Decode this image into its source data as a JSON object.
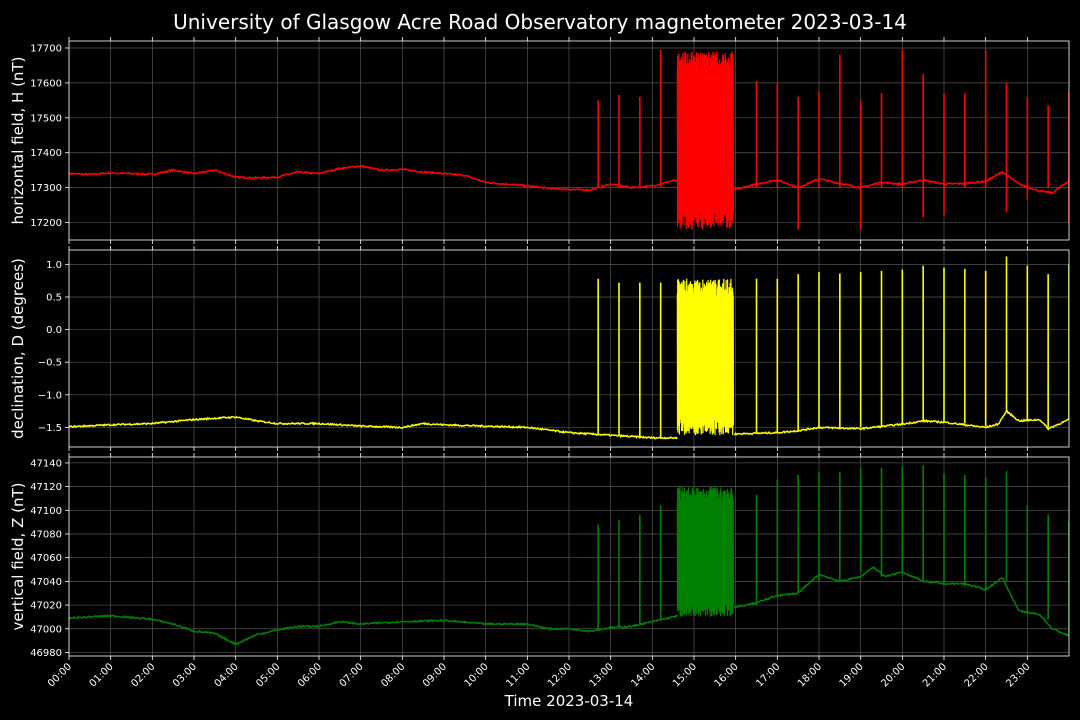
{
  "chart_data": {
    "type": "line",
    "title": "University of Glasgow Acre Road Observatory magnetometer 2023-03-14",
    "xlabel": "Time 2023-03-14",
    "x_ticks": [
      "00:00",
      "01:00",
      "02:00",
      "03:00",
      "04:00",
      "05:00",
      "06:00",
      "07:00",
      "08:00",
      "09:00",
      "10:00",
      "11:00",
      "12:00",
      "13:00",
      "14:00",
      "15:00",
      "16:00",
      "17:00",
      "18:00",
      "19:00",
      "20:00",
      "21:00",
      "22:00",
      "23:00"
    ],
    "xlim_hours": [
      0,
      24
    ],
    "grid": true,
    "panels": [
      {
        "name": "H",
        "ylabel": "horizontal field, H (nT)",
        "color": "#ff0000",
        "ylim": [
          17150,
          17720
        ],
        "y_ticks": [
          17200,
          17300,
          17400,
          17500,
          17600,
          17700
        ],
        "y_tick_labels": [
          "17200",
          "17300",
          "17400",
          "17500",
          "17600",
          "17700"
        ],
        "baseline": [
          [
            0,
            17340
          ],
          [
            0.5,
            17338
          ],
          [
            1,
            17342
          ],
          [
            1.5,
            17340
          ],
          [
            2,
            17338
          ],
          [
            2.5,
            17350
          ],
          [
            3,
            17340
          ],
          [
            3.5,
            17350
          ],
          [
            4,
            17330
          ],
          [
            4.5,
            17328
          ],
          [
            5,
            17330
          ],
          [
            5.5,
            17345
          ],
          [
            6,
            17340
          ],
          [
            6.5,
            17355
          ],
          [
            7,
            17362
          ],
          [
            7.5,
            17350
          ],
          [
            8,
            17352
          ],
          [
            8.5,
            17345
          ],
          [
            9,
            17340
          ],
          [
            9.5,
            17335
          ],
          [
            10,
            17315
          ],
          [
            10.5,
            17310
          ],
          [
            11,
            17305
          ],
          [
            11.5,
            17298
          ],
          [
            12,
            17295
          ],
          [
            12.5,
            17293
          ],
          [
            13,
            17310
          ],
          [
            13.5,
            17300
          ],
          [
            14,
            17305
          ],
          [
            14.5,
            17320
          ],
          [
            15,
            17310
          ],
          [
            15.5,
            17300
          ],
          [
            16,
            17295
          ],
          [
            16.5,
            17310
          ],
          [
            17,
            17322
          ],
          [
            17.5,
            17300
          ],
          [
            18,
            17325
          ],
          [
            18.5,
            17312
          ],
          [
            19,
            17300
          ],
          [
            19.5,
            17315
          ],
          [
            20,
            17310
          ],
          [
            20.5,
            17322
          ],
          [
            21,
            17310
          ],
          [
            21.5,
            17312
          ],
          [
            22,
            17318
          ],
          [
            22.4,
            17345
          ],
          [
            22.8,
            17310
          ],
          [
            23.3,
            17290
          ],
          [
            23.6,
            17285
          ],
          [
            24,
            17320
          ]
        ],
        "spikes": [
          [
            12.7,
            17550,
            17300
          ],
          [
            13.2,
            17565,
            17300
          ],
          [
            13.7,
            17560,
            17300
          ],
          [
            14.2,
            17695,
            17300
          ],
          [
            16.5,
            17605,
            17300
          ],
          [
            17.0,
            17600,
            17300
          ],
          [
            17.5,
            17560,
            17180
          ],
          [
            18.0,
            17575,
            17300
          ],
          [
            18.5,
            17680,
            17300
          ],
          [
            19.0,
            17550,
            17180
          ],
          [
            19.5,
            17570,
            17300
          ],
          [
            20.0,
            17695,
            17300
          ],
          [
            20.5,
            17625,
            17215
          ],
          [
            21.0,
            17570,
            17220
          ],
          [
            21.5,
            17570,
            17300
          ],
          [
            22.0,
            17695,
            17300
          ],
          [
            22.5,
            17600,
            17230
          ],
          [
            23.0,
            17560,
            17265
          ],
          [
            23.5,
            17535,
            17300
          ],
          [
            24.0,
            17575,
            17200
          ]
        ],
        "burst": {
          "start": 14.6,
          "end": 15.95,
          "top": 17690,
          "bottom": 17180
        }
      },
      {
        "name": "D",
        "ylabel": "declination, D (degrees)",
        "color": "#ffff00",
        "ylim": [
          -1.8,
          1.22
        ],
        "y_ticks": [
          -1.5,
          -1.0,
          -0.5,
          0.0,
          0.5,
          1.0
        ],
        "y_tick_labels": [
          "−1.5",
          "−1.0",
          "−0.5",
          "0.0",
          "0.5",
          "1.0"
        ],
        "baseline": [
          [
            0,
            -1.49
          ],
          [
            1,
            -1.46
          ],
          [
            2,
            -1.44
          ],
          [
            3,
            -1.38
          ],
          [
            3.5,
            -1.36
          ],
          [
            4,
            -1.34
          ],
          [
            4.5,
            -1.4
          ],
          [
            5,
            -1.44
          ],
          [
            6,
            -1.44
          ],
          [
            7,
            -1.48
          ],
          [
            8,
            -1.5
          ],
          [
            8.5,
            -1.44
          ],
          [
            9,
            -1.46
          ],
          [
            10,
            -1.48
          ],
          [
            11,
            -1.5
          ],
          [
            12,
            -1.58
          ],
          [
            13,
            -1.62
          ],
          [
            14,
            -1.66
          ],
          [
            14.6,
            -1.66
          ],
          [
            15,
            -1.6
          ],
          [
            16,
            -1.6
          ],
          [
            17,
            -1.58
          ],
          [
            17.5,
            -1.55
          ],
          [
            18,
            -1.5
          ],
          [
            19,
            -1.52
          ],
          [
            20,
            -1.45
          ],
          [
            20.5,
            -1.4
          ],
          [
            21,
            -1.42
          ],
          [
            22,
            -1.5
          ],
          [
            22.3,
            -1.45
          ],
          [
            22.5,
            -1.25
          ],
          [
            22.8,
            -1.4
          ],
          [
            23.3,
            -1.38
          ],
          [
            23.5,
            -1.52
          ],
          [
            24,
            -1.38
          ]
        ],
        "spikes": [
          [
            12.7,
            0.78,
            -1.6
          ],
          [
            13.2,
            0.72,
            -1.62
          ],
          [
            13.7,
            0.72,
            -1.64
          ],
          [
            14.2,
            0.72,
            -1.66
          ],
          [
            16.5,
            0.78,
            -1.58
          ],
          [
            17.0,
            0.78,
            -1.57
          ],
          [
            17.5,
            0.85,
            -1.55
          ],
          [
            18.0,
            0.88,
            -1.52
          ],
          [
            18.5,
            0.86,
            -1.5
          ],
          [
            19.0,
            0.88,
            -1.5
          ],
          [
            19.5,
            0.9,
            -1.48
          ],
          [
            20.0,
            0.92,
            -1.45
          ],
          [
            20.5,
            0.98,
            -1.42
          ],
          [
            21.0,
            0.95,
            -1.42
          ],
          [
            21.5,
            0.93,
            -1.44
          ],
          [
            22.0,
            0.9,
            -1.48
          ],
          [
            22.5,
            1.12,
            -1.25
          ],
          [
            23.0,
            0.98,
            -1.4
          ],
          [
            23.5,
            0.85,
            -1.5
          ],
          [
            24.0,
            1.0,
            -1.38
          ]
        ],
        "burst": {
          "start": 14.6,
          "end": 15.95,
          "top": 0.78,
          "bottom": -1.62
        }
      },
      {
        "name": "Z",
        "ylabel": "vertical field, Z (nT)",
        "color": "#008000",
        "ylim": [
          46977,
          47145
        ],
        "y_ticks": [
          46980,
          47000,
          47020,
          47040,
          47060,
          47080,
          47100,
          47120,
          47140
        ],
        "y_tick_labels": [
          "46980",
          "47000",
          "47020",
          "47040",
          "47060",
          "47080",
          "47100",
          "47120",
          "47140"
        ],
        "baseline": [
          [
            0,
            47009
          ],
          [
            1,
            47011
          ],
          [
            2,
            47008
          ],
          [
            2.5,
            47004
          ],
          [
            3,
            46998
          ],
          [
            3.5,
            46996
          ],
          [
            4,
            46987
          ],
          [
            4.5,
            46995
          ],
          [
            5,
            46999
          ],
          [
            5.5,
            47002
          ],
          [
            6,
            47002
          ],
          [
            6.5,
            47006
          ],
          [
            7,
            47004
          ],
          [
            8,
            47006
          ],
          [
            9,
            47007
          ],
          [
            10,
            47004
          ],
          [
            11,
            47004
          ],
          [
            11.5,
            47000
          ],
          [
            12,
            47000
          ],
          [
            12.5,
            46998
          ],
          [
            13,
            47001
          ],
          [
            13.5,
            47002
          ],
          [
            14,
            47006
          ],
          [
            14.5,
            47010
          ],
          [
            15,
            47015
          ],
          [
            15.5,
            47018
          ],
          [
            16,
            47018
          ],
          [
            16.5,
            47022
          ],
          [
            17,
            47028
          ],
          [
            17.5,
            47030
          ],
          [
            18,
            47046
          ],
          [
            18.5,
            47040
          ],
          [
            19,
            47044
          ],
          [
            19.3,
            47052
          ],
          [
            19.6,
            47044
          ],
          [
            20,
            47048
          ],
          [
            20.5,
            47040
          ],
          [
            21,
            47038
          ],
          [
            21.5,
            47038
          ],
          [
            22,
            47033
          ],
          [
            22.4,
            47043
          ],
          [
            22.8,
            47015
          ],
          [
            23.3,
            47012
          ],
          [
            23.6,
            47000
          ],
          [
            24,
            46994
          ]
        ],
        "spikes": [
          [
            12.7,
            47088,
            47000
          ],
          [
            13.2,
            47092,
            47002
          ],
          [
            13.7,
            47096,
            47004
          ],
          [
            14.2,
            47104,
            47008
          ],
          [
            16.5,
            47113,
            47020
          ],
          [
            17.0,
            47126,
            47028
          ],
          [
            17.5,
            47130,
            47030
          ],
          [
            18.0,
            47132,
            47040
          ],
          [
            18.5,
            47132,
            47040
          ],
          [
            19.0,
            47136,
            47048
          ],
          [
            19.5,
            47136,
            47044
          ],
          [
            20.0,
            47137,
            47048
          ],
          [
            20.5,
            47138,
            47040
          ],
          [
            21.0,
            47131,
            47038
          ],
          [
            21.5,
            47130,
            47036
          ],
          [
            22.0,
            47128,
            47033
          ],
          [
            22.5,
            47133,
            47040
          ],
          [
            23.0,
            47104,
            47012
          ],
          [
            23.5,
            47096,
            47008
          ],
          [
            24.0,
            47090,
            46994
          ]
        ],
        "burst": {
          "start": 14.6,
          "end": 15.95,
          "top": 47120,
          "bottom": 47010
        }
      }
    ]
  }
}
